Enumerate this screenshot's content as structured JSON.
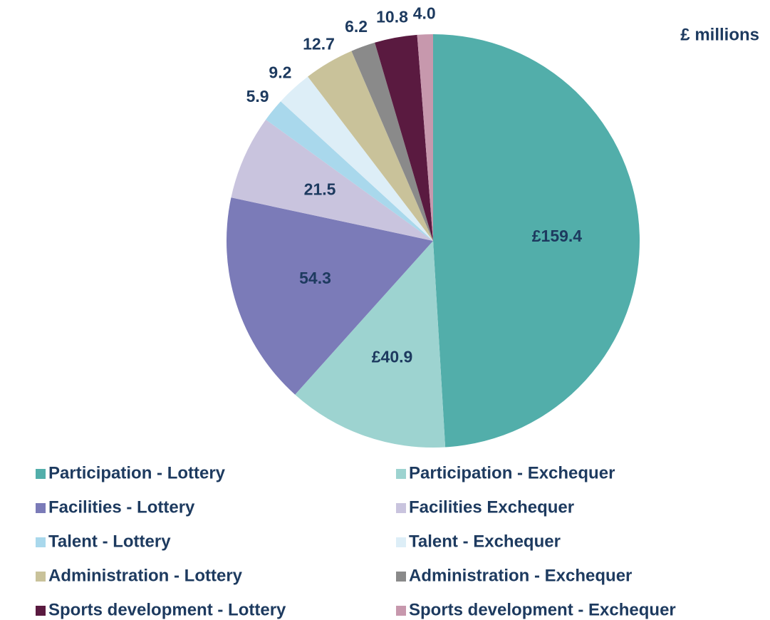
{
  "chart_data": {
    "type": "pie",
    "unit_label": "£ millions",
    "categories": [
      "Participation - Lottery",
      "Participation - Exchequer",
      "Facilities - Lottery",
      "Facilities Exchequer",
      "Talent - Lottery",
      "Talent - Exchequer",
      "Administration - Lottery",
      "Administration - Exchequer",
      "Sports development - Lottery",
      "Sports development - Exchequer"
    ],
    "values": [
      159.4,
      40.9,
      54.3,
      21.5,
      5.9,
      9.2,
      12.7,
      6.2,
      10.8,
      4.0
    ],
    "value_labels": [
      "£159.4",
      "£40.9",
      "54.3",
      "21.5",
      "5.9",
      "9.2",
      "12.7",
      "6.2",
      "10.8",
      "4.0"
    ],
    "colors": [
      "#52aeaa",
      "#9dd3d0",
      "#7b7bb8",
      "#c9c4de",
      "#a9d8ec",
      "#ddeef7",
      "#c9c29a",
      "#8a8a8a",
      "#5a1a40",
      "#c798ad"
    ]
  }
}
